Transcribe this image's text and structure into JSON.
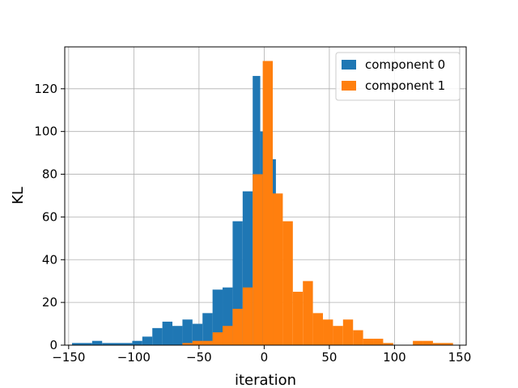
{
  "chart_data": {
    "type": "bar",
    "subtype": "overlapping-histogram",
    "xlabel": "iteration",
    "ylabel": "KL",
    "xlim": [
      -153,
      155
    ],
    "ylim": [
      0,
      139.6
    ],
    "xticks": [
      -150,
      -100,
      -50,
      0,
      50,
      100,
      150
    ],
    "xtick_labels": [
      "−150",
      "−100",
      "−50",
      "0",
      "50",
      "100",
      "150"
    ],
    "yticks": [
      0,
      20,
      40,
      60,
      80,
      100,
      120
    ],
    "grid": true,
    "legend_position": "top-right",
    "series": [
      {
        "name": "component 0",
        "color": "#1f77b4",
        "bins": [
          [
            -147.4,
            -132.0,
            1
          ],
          [
            -132.0,
            -124.3,
            2
          ],
          [
            -124.3,
            -101.2,
            1
          ],
          [
            -101.2,
            -93.5,
            2
          ],
          [
            -93.5,
            -85.8,
            4
          ],
          [
            -85.8,
            -78.1,
            8
          ],
          [
            -78.1,
            -70.4,
            11
          ],
          [
            -70.4,
            -62.7,
            9
          ],
          [
            -62.7,
            -55.0,
            12
          ],
          [
            -55.0,
            -47.3,
            10
          ],
          [
            -47.3,
            -39.6,
            15
          ],
          [
            -39.6,
            -31.9,
            26
          ],
          [
            -31.9,
            -24.2,
            27
          ],
          [
            -24.2,
            -16.5,
            58
          ],
          [
            -16.5,
            -8.8,
            72
          ],
          [
            -8.8,
            -3.0,
            126
          ],
          [
            -3.0,
            3.0,
            100
          ],
          [
            3.0,
            9.0,
            87
          ],
          [
            9.0,
            14.0,
            4
          ]
        ]
      },
      {
        "name": "component 1",
        "color": "#ff7f0e",
        "bins": [
          [
            -62.7,
            -55.0,
            1
          ],
          [
            -55.0,
            -47.3,
            2
          ],
          [
            -47.3,
            -39.6,
            2
          ],
          [
            -39.6,
            -31.9,
            6
          ],
          [
            -31.9,
            -24.2,
            9
          ],
          [
            -24.2,
            -16.5,
            17
          ],
          [
            -16.5,
            -8.8,
            27
          ],
          [
            -8.8,
            -1.1,
            80
          ],
          [
            -1.1,
            6.6,
            133
          ],
          [
            6.6,
            14.3,
            71
          ],
          [
            14.3,
            22.0,
            58
          ],
          [
            22.0,
            29.7,
            25
          ],
          [
            29.7,
            37.4,
            30
          ],
          [
            37.4,
            45.1,
            15
          ],
          [
            45.1,
            52.8,
            12
          ],
          [
            52.8,
            60.5,
            9
          ],
          [
            60.5,
            68.2,
            12
          ],
          [
            68.2,
            75.9,
            7
          ],
          [
            75.9,
            83.6,
            3
          ],
          [
            83.6,
            91.3,
            3
          ],
          [
            91.3,
            99.0,
            1
          ],
          [
            114.1,
            121.8,
            2
          ],
          [
            121.8,
            129.5,
            2
          ],
          [
            129.5,
            144.9,
            1
          ]
        ]
      }
    ]
  }
}
